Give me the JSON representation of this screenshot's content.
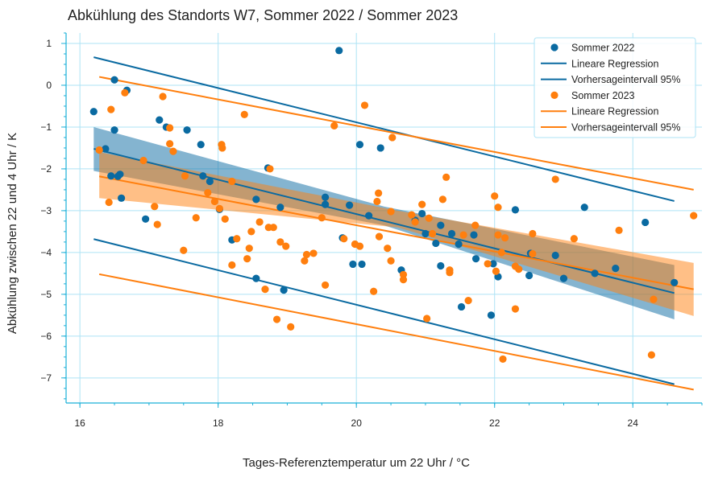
{
  "chart_data": {
    "type": "scatter",
    "title": "Abkühlung des Standorts W7, Sommer 2022 / Sommer 2023",
    "xlabel": "Tages-Referenztemperatur um 22 Uhr / °C",
    "ylabel": "Abkühlung zwischen 22 und 4 Uhr / K",
    "xlim": [
      15.8,
      25.0
    ],
    "ylim": [
      -7.6,
      1.25
    ],
    "xticks": [
      16,
      18,
      20,
      22,
      24
    ],
    "yticks": [
      1,
      0,
      -1,
      -2,
      -3,
      -4,
      -5,
      -6,
      -7
    ],
    "grid": true,
    "legend_position": "top-right",
    "colors": {
      "s2022": "#0a6aa1",
      "s2023": "#ff7f0e",
      "grid": "#aee3f5",
      "axis": "#1bb0d8"
    },
    "legend": [
      {
        "label": "Sommer 2022",
        "kind": "marker",
        "color": "#0a6aa1"
      },
      {
        "label": "Lineare Regression",
        "kind": "line",
        "color": "#0a6aa1"
      },
      {
        "label": "Vorhersageintervall 95%",
        "kind": "line",
        "color": "#0a6aa1"
      },
      {
        "label": "Sommer 2023",
        "kind": "marker",
        "color": "#ff7f0e"
      },
      {
        "label": "Lineare Regression",
        "kind": "line",
        "color": "#ff7f0e"
      },
      {
        "label": "Vorhersageintervall 95%",
        "kind": "line",
        "color": "#ff7f0e"
      }
    ],
    "series": [
      {
        "name": "Sommer 2022",
        "color": "#0a6aa1",
        "points": [
          [
            16.2,
            -0.63
          ],
          [
            16.37,
            -1.52
          ],
          [
            16.45,
            -2.17
          ],
          [
            16.5,
            0.13
          ],
          [
            16.5,
            -1.07
          ],
          [
            16.55,
            -2.18
          ],
          [
            16.58,
            -2.13
          ],
          [
            16.6,
            -2.7
          ],
          [
            16.68,
            -0.12
          ],
          [
            16.95,
            -3.2
          ],
          [
            17.15,
            -0.83
          ],
          [
            17.25,
            -1.0
          ],
          [
            17.55,
            -1.07
          ],
          [
            17.75,
            -1.42
          ],
          [
            17.78,
            -2.17
          ],
          [
            17.88,
            -2.3
          ],
          [
            18.02,
            -2.97
          ],
          [
            18.2,
            -3.7
          ],
          [
            18.55,
            -2.73
          ],
          [
            18.55,
            -4.62
          ],
          [
            18.72,
            -1.98
          ],
          [
            18.9,
            -2.92
          ],
          [
            18.95,
            -4.9
          ],
          [
            19.55,
            -2.68
          ],
          [
            19.55,
            -2.85
          ],
          [
            19.75,
            0.83
          ],
          [
            19.8,
            -3.65
          ],
          [
            19.9,
            -2.87
          ],
          [
            19.95,
            -4.28
          ],
          [
            20.05,
            -1.42
          ],
          [
            20.08,
            -4.28
          ],
          [
            20.18,
            -3.12
          ],
          [
            20.35,
            -1.5
          ],
          [
            20.65,
            -4.42
          ],
          [
            20.85,
            -3.23
          ],
          [
            20.95,
            -3.07
          ],
          [
            21.0,
            -3.55
          ],
          [
            21.15,
            -3.78
          ],
          [
            21.22,
            -4.32
          ],
          [
            21.22,
            -3.35
          ],
          [
            21.38,
            -3.55
          ],
          [
            21.48,
            -3.8
          ],
          [
            21.52,
            -5.3
          ],
          [
            21.7,
            -3.58
          ],
          [
            21.73,
            -4.15
          ],
          [
            21.95,
            -5.5
          ],
          [
            21.98,
            -4.27
          ],
          [
            22.05,
            -4.58
          ],
          [
            22.3,
            -2.98
          ],
          [
            22.5,
            -4.55
          ],
          [
            22.52,
            -4.02
          ],
          [
            22.88,
            -4.07
          ],
          [
            23.0,
            -4.62
          ],
          [
            23.3,
            -2.92
          ],
          [
            23.45,
            -4.5
          ],
          [
            23.75,
            -4.38
          ],
          [
            24.18,
            -3.28
          ],
          [
            24.6,
            -4.72
          ]
        ],
        "regression": {
          "x": [
            16.2,
            24.6
          ],
          "y": [
            -1.52,
            -4.97
          ]
        },
        "prediction_interval": {
          "upper": {
            "x": [
              16.2,
              24.6
            ],
            "y": [
              0.67,
              -2.77
            ]
          },
          "lower": {
            "x": [
              16.2,
              24.6
            ],
            "y": [
              -3.68,
              -7.15
            ]
          }
        },
        "confidence_band": {
          "x": [
            16.2,
            20.4,
            24.6
          ],
          "upper": [
            -1.0,
            -2.9,
            -4.3
          ],
          "lower": [
            -2.05,
            -3.35,
            -5.6
          ]
        }
      },
      {
        "name": "Sommer 2023",
        "color": "#ff7f0e",
        "points": [
          [
            16.28,
            -1.55
          ],
          [
            16.42,
            -2.8
          ],
          [
            16.45,
            -0.58
          ],
          [
            16.65,
            -0.18
          ],
          [
            16.92,
            -1.8
          ],
          [
            17.08,
            -2.9
          ],
          [
            17.12,
            -3.33
          ],
          [
            17.2,
            -0.27
          ],
          [
            17.3,
            -1.02
          ],
          [
            17.3,
            -1.4
          ],
          [
            17.35,
            -1.58
          ],
          [
            17.5,
            -3.95
          ],
          [
            17.52,
            -2.17
          ],
          [
            17.68,
            -3.17
          ],
          [
            17.85,
            -2.57
          ],
          [
            17.95,
            -2.78
          ],
          [
            18.02,
            -2.95
          ],
          [
            18.05,
            -1.42
          ],
          [
            18.06,
            -1.5
          ],
          [
            18.1,
            -3.2
          ],
          [
            18.2,
            -4.3
          ],
          [
            18.2,
            -2.3
          ],
          [
            18.27,
            -3.67
          ],
          [
            18.38,
            -0.7
          ],
          [
            18.42,
            -4.15
          ],
          [
            18.45,
            -3.9
          ],
          [
            18.48,
            -3.5
          ],
          [
            18.6,
            -3.27
          ],
          [
            18.68,
            -4.88
          ],
          [
            18.73,
            -3.4
          ],
          [
            18.75,
            -2.0
          ],
          [
            18.8,
            -3.4
          ],
          [
            18.85,
            -5.6
          ],
          [
            18.9,
            -3.75
          ],
          [
            18.98,
            -3.85
          ],
          [
            19.05,
            -5.78
          ],
          [
            19.25,
            -4.2
          ],
          [
            19.28,
            -4.05
          ],
          [
            19.38,
            -4.02
          ],
          [
            19.5,
            -3.17
          ],
          [
            19.55,
            -4.78
          ],
          [
            19.68,
            -0.97
          ],
          [
            19.82,
            -3.67
          ],
          [
            19.98,
            -3.8
          ],
          [
            20.05,
            -3.85
          ],
          [
            20.12,
            -0.48
          ],
          [
            20.25,
            -4.93
          ],
          [
            20.3,
            -2.78
          ],
          [
            20.32,
            -2.58
          ],
          [
            20.33,
            -3.62
          ],
          [
            20.45,
            -3.9
          ],
          [
            20.5,
            -4.2
          ],
          [
            20.5,
            -3.02
          ],
          [
            20.52,
            -1.25
          ],
          [
            20.68,
            -4.53
          ],
          [
            20.68,
            -4.65
          ],
          [
            20.8,
            -3.1
          ],
          [
            20.85,
            -3.27
          ],
          [
            20.95,
            -2.85
          ],
          [
            21.02,
            -5.58
          ],
          [
            21.05,
            -3.18
          ],
          [
            21.1,
            -3.55
          ],
          [
            21.25,
            -2.73
          ],
          [
            21.3,
            -2.2
          ],
          [
            21.35,
            -4.48
          ],
          [
            21.35,
            -4.42
          ],
          [
            21.55,
            -3.58
          ],
          [
            21.62,
            -5.15
          ],
          [
            21.72,
            -3.35
          ],
          [
            21.9,
            -4.27
          ],
          [
            22.0,
            -2.65
          ],
          [
            22.02,
            -4.45
          ],
          [
            22.05,
            -3.58
          ],
          [
            22.05,
            -2.92
          ],
          [
            22.1,
            -4.0
          ],
          [
            22.12,
            -6.55
          ],
          [
            22.15,
            -3.65
          ],
          [
            22.3,
            -4.33
          ],
          [
            22.3,
            -5.35
          ],
          [
            22.35,
            -4.4
          ],
          [
            22.55,
            -3.55
          ],
          [
            22.55,
            -4.03
          ],
          [
            22.88,
            -2.25
          ],
          [
            23.15,
            -3.67
          ],
          [
            23.8,
            -3.47
          ],
          [
            24.27,
            -6.45
          ],
          [
            24.3,
            -5.12
          ],
          [
            24.88,
            -3.12
          ]
        ],
        "regression": {
          "x": [
            16.28,
            24.88
          ],
          "y": [
            -2.18,
            -4.88
          ]
        },
        "prediction_interval": {
          "upper": {
            "x": [
              16.28,
              24.88
            ],
            "y": [
              0.2,
              -2.5
            ]
          },
          "lower": {
            "x": [
              16.28,
              24.88
            ],
            "y": [
              -4.52,
              -7.28
            ]
          }
        },
        "confidence_band": {
          "x": [
            16.28,
            20.6,
            24.88
          ],
          "upper": [
            -1.6,
            -3.0,
            -4.25
          ],
          "lower": [
            -2.7,
            -3.4,
            -5.52
          ]
        }
      }
    ]
  }
}
